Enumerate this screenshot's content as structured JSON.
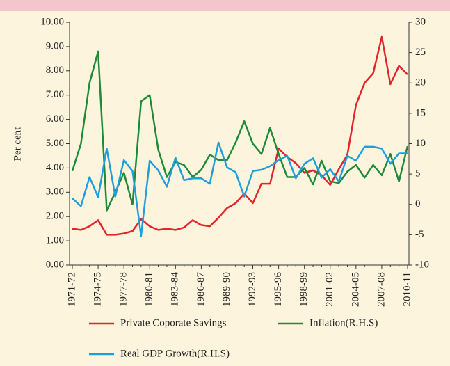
{
  "chart_data": {
    "type": "line",
    "ylabel": "Per cent",
    "categories": [
      "1971-72",
      null,
      null,
      "1974-75",
      null,
      null,
      "1977-78",
      null,
      null,
      "1980-81",
      null,
      null,
      "1983-84",
      null,
      null,
      "1986-87",
      null,
      null,
      "1989-90",
      null,
      null,
      "1992-93",
      null,
      null,
      "1995-96",
      null,
      null,
      "1998-99",
      null,
      null,
      "2001-02",
      null,
      null,
      "2004-05",
      null,
      null,
      "2007-08",
      null,
      null,
      "2010-11"
    ],
    "series": [
      {
        "name": "Private Coporate Savings",
        "color": "#e3242b",
        "axis": "y",
        "values": [
          1.5,
          1.45,
          1.6,
          1.85,
          1.25,
          1.25,
          1.3,
          1.4,
          1.9,
          1.6,
          1.45,
          1.5,
          1.45,
          1.55,
          1.85,
          1.65,
          1.6,
          1.95,
          2.35,
          2.55,
          2.95,
          2.55,
          3.35,
          3.35,
          4.8,
          4.45,
          4.2,
          3.8,
          3.9,
          3.7,
          3.3,
          3.95,
          4.55,
          6.6,
          7.5,
          7.9,
          9.4,
          7.45,
          8.2,
          7.85
        ]
      },
      {
        "name": "Inflation(R.H.S)",
        "color": "#1f8b3a",
        "axis": "y2",
        "values": [
          5.5,
          10,
          20,
          25.2,
          -1,
          2,
          5.2,
          0,
          17,
          18,
          9,
          4.5,
          7,
          6.5,
          4.5,
          5.7,
          8.2,
          7.3,
          7.3,
          10.2,
          13.7,
          10,
          8.3,
          12.6,
          8.3,
          4.5,
          4.5,
          6,
          3.3,
          7.2,
          3.8,
          3.5,
          5.4,
          6.5,
          4.4,
          6.5,
          4.8,
          8.3,
          3.8,
          9.6
        ]
      },
      {
        "name": "Real GDP Growth(R.H.S)",
        "color": "#1e9fdc",
        "axis": "y2",
        "values": [
          1,
          -0.3,
          4.5,
          1.2,
          9.2,
          1.3,
          7.3,
          5.5,
          -5.2,
          7.2,
          5.6,
          2.9,
          7.7,
          4,
          4.3,
          4.3,
          3.4,
          10.2,
          6.1,
          5.3,
          1.3,
          5.5,
          5.7,
          6.3,
          7.3,
          8,
          4.3,
          6.7,
          7.6,
          4.4,
          5.8,
          3.8,
          8,
          7.2,
          9.5,
          9.5,
          9.2,
          6.7,
          8.4,
          8.4
        ]
      }
    ],
    "ylim": [
      0,
      10
    ],
    "yticks": [
      {
        "value": 0,
        "label": "0.00"
      },
      {
        "value": 1,
        "label": "1.00"
      },
      {
        "value": 2,
        "label": "2.00"
      },
      {
        "value": 3,
        "label": "3.00"
      },
      {
        "value": 4,
        "label": "4.00"
      },
      {
        "value": 5,
        "label": "5.00"
      },
      {
        "value": 6,
        "label": "6.00"
      },
      {
        "value": 7,
        "label": "7.00"
      },
      {
        "value": 8,
        "label": "8.00"
      },
      {
        "value": 9,
        "label": "9.00"
      },
      {
        "value": 10,
        "label": "10.00"
      }
    ],
    "y2lim": [
      -10,
      30
    ],
    "y2ticks": [
      -10,
      -5,
      0,
      5,
      10,
      15,
      20,
      25,
      30
    ]
  }
}
